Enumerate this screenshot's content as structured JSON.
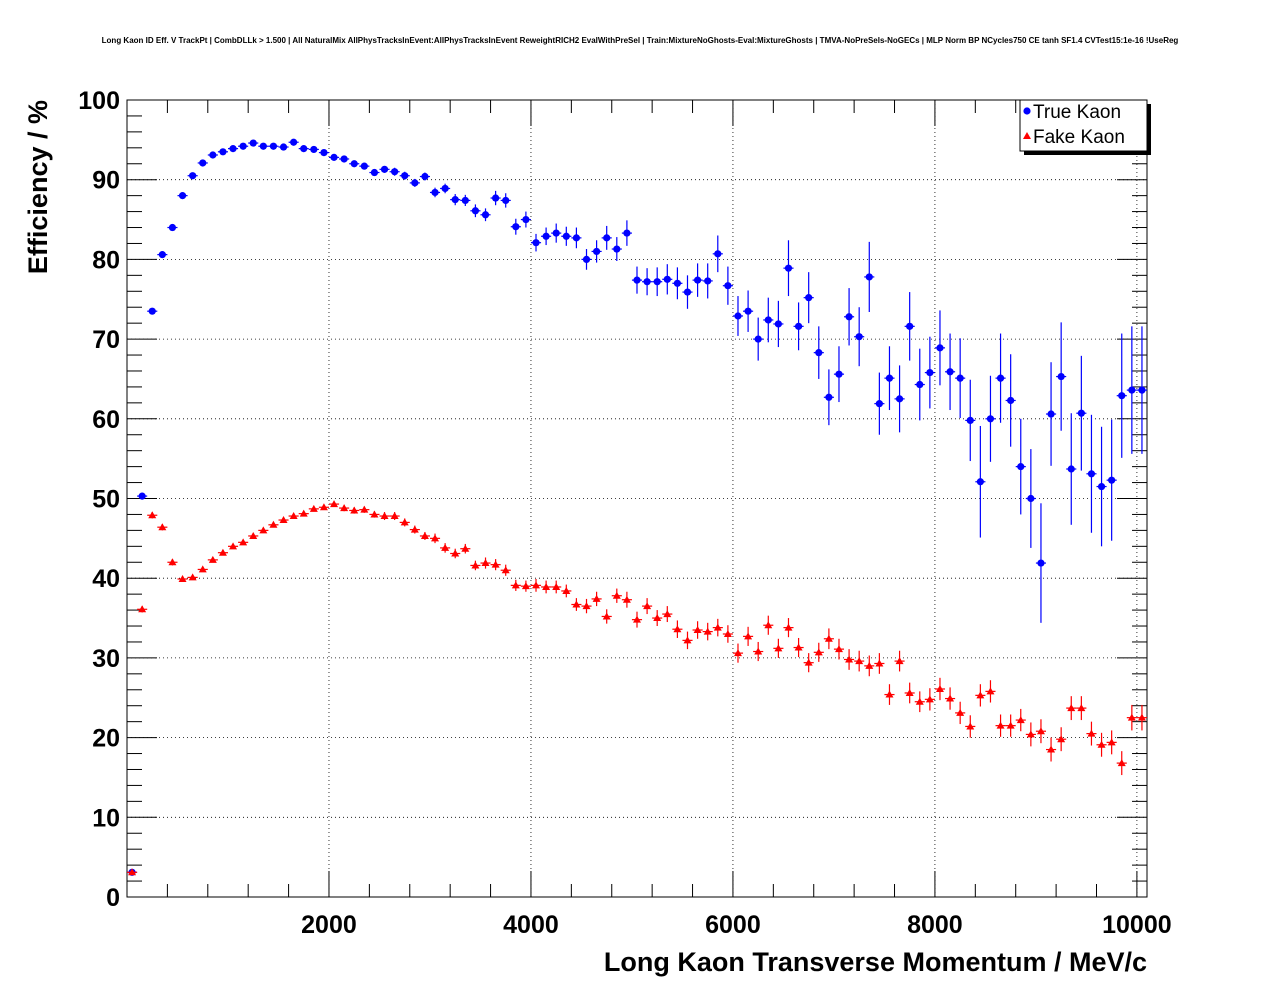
{
  "chart_data": {
    "type": "scatter",
    "title": "Long Kaon ID Eff. V TrackPt | CombDLLk > 1.500 | All NaturalMix AllPhysTracksInEvent:AllPhysTracksInEvent ReweightRICH2 EvalWithPreSel | Train:MixtureNoGhosts-Eval:MixtureGhosts | TMVA-NoPreSels-NoGECs | MLP Norm BP NCycles750 CE tanh SF1.4 CVTest15:1e-16 !UseReg",
    "xlabel": "Long Kaon Transverse Momentum / MeV/c",
    "ylabel": "Efficiency / %",
    "xlim": [
      0,
      10100
    ],
    "ylim": [
      0,
      100
    ],
    "x_ticks": [
      2000,
      4000,
      6000,
      8000,
      10000
    ],
    "y_ticks": [
      0,
      10,
      20,
      30,
      40,
      50,
      60,
      70,
      80,
      90,
      100
    ],
    "grid": true,
    "legend_position": "top-right",
    "series": [
      {
        "name": "True Kaon",
        "color": "#0000ff",
        "marker": "circle",
        "x": [
          50,
          150,
          250,
          350,
          450,
          550,
          650,
          750,
          850,
          950,
          1050,
          1150,
          1250,
          1350,
          1450,
          1550,
          1650,
          1750,
          1850,
          1950,
          2050,
          2150,
          2250,
          2350,
          2450,
          2550,
          2650,
          2750,
          2850,
          2950,
          3050,
          3150,
          3250,
          3350,
          3450,
          3550,
          3650,
          3750,
          3850,
          3950,
          4050,
          4150,
          4250,
          4350,
          4450,
          4550,
          4650,
          4750,
          4850,
          4950,
          5050,
          5150,
          5250,
          5350,
          5450,
          5550,
          5650,
          5750,
          5850,
          5950,
          6050,
          6150,
          6250,
          6350,
          6450,
          6550,
          6650,
          6750,
          6850,
          6950,
          7050,
          7150,
          7250,
          7350,
          7450,
          7550,
          7650,
          7750,
          7850,
          7950,
          8050,
          8150,
          8250,
          8350,
          8450,
          8550,
          8650,
          8750,
          8850,
          8950,
          9050,
          9150,
          9250,
          9350,
          9450,
          9550,
          9650,
          9750,
          9850,
          9950,
          10050
        ],
        "y": [
          3.1,
          50.3,
          73.5,
          80.6,
          84.0,
          88.0,
          90.5,
          92.1,
          93.1,
          93.5,
          93.9,
          94.2,
          94.6,
          94.2,
          94.2,
          94.1,
          94.7,
          93.9,
          93.8,
          93.4,
          92.8,
          92.6,
          92.0,
          91.7,
          90.9,
          91.3,
          91.0,
          90.5,
          89.6,
          90.4,
          88.4,
          88.9,
          87.5,
          87.4,
          86.1,
          85.6,
          87.7,
          87.4,
          84.1,
          85.0,
          82.1,
          82.9,
          83.3,
          82.9,
          82.7,
          80.0,
          81.0,
          82.7,
          81.3,
          83.3,
          77.4,
          77.2,
          77.2,
          77.5,
          77.0,
          75.9,
          77.4,
          77.3,
          80.7,
          76.7,
          72.9,
          73.5,
          70.0,
          72.4,
          71.9,
          78.9,
          71.6,
          75.2,
          68.3,
          62.7,
          65.6,
          72.8,
          70.3,
          77.8,
          61.9,
          65.1,
          62.5,
          71.6,
          64.3,
          65.8,
          68.9,
          65.9,
          65.1,
          59.8,
          52.1,
          60.0,
          65.1,
          62.3,
          54.0,
          50.0,
          41.9,
          60.6,
          65.3,
          53.7,
          60.7,
          53.1,
          51.5,
          52.3,
          62.9,
          63.6,
          63.6
        ],
        "err": [
          0.3,
          0.4,
          0.4,
          0.4,
          0.4,
          0.4,
          0.3,
          0.3,
          0.3,
          0.3,
          0.3,
          0.3,
          0.3,
          0.3,
          0.3,
          0.3,
          0.3,
          0.3,
          0.3,
          0.3,
          0.3,
          0.3,
          0.4,
          0.4,
          0.4,
          0.4,
          0.5,
          0.5,
          0.5,
          0.5,
          0.6,
          0.6,
          0.7,
          0.7,
          0.8,
          0.8,
          0.9,
          0.9,
          1.0,
          1.0,
          1.1,
          1.1,
          1.2,
          1.2,
          1.3,
          1.3,
          1.4,
          1.5,
          1.5,
          1.6,
          1.7,
          1.7,
          1.8,
          1.9,
          2.0,
          2.1,
          2.1,
          2.2,
          2.3,
          2.4,
          2.5,
          2.6,
          2.7,
          2.8,
          2.9,
          3.5,
          3.0,
          3.2,
          3.3,
          3.5,
          3.5,
          3.6,
          3.7,
          4.4,
          3.9,
          4.0,
          4.2,
          4.3,
          4.5,
          4.5,
          4.7,
          4.8,
          5.0,
          5.1,
          7.0,
          5.4,
          5.6,
          5.8,
          6.0,
          6.2,
          7.5,
          6.5,
          6.8,
          7.0,
          7.2,
          7.4,
          7.5,
          7.6,
          7.8,
          8.0,
          8.0
        ]
      },
      {
        "name": "Fake Kaon",
        "color": "#ff0000",
        "marker": "triangle",
        "x": [
          50,
          150,
          250,
          350,
          450,
          550,
          650,
          750,
          850,
          950,
          1050,
          1150,
          1250,
          1350,
          1450,
          1550,
          1650,
          1750,
          1850,
          1950,
          2050,
          2150,
          2250,
          2350,
          2450,
          2550,
          2650,
          2750,
          2850,
          2950,
          3050,
          3150,
          3250,
          3350,
          3450,
          3550,
          3650,
          3750,
          3850,
          3950,
          4050,
          4150,
          4250,
          4350,
          4450,
          4550,
          4650,
          4750,
          4850,
          4950,
          5050,
          5150,
          5250,
          5350,
          5450,
          5550,
          5650,
          5750,
          5850,
          5950,
          6050,
          6150,
          6250,
          6350,
          6450,
          6550,
          6650,
          6750,
          6850,
          6950,
          7050,
          7150,
          7250,
          7350,
          7450,
          7550,
          7650,
          7750,
          7850,
          7950,
          8050,
          8150,
          8250,
          8350,
          8450,
          8550,
          8650,
          8750,
          8850,
          8950,
          9050,
          9150,
          9250,
          9350,
          9450,
          9550,
          9650,
          9750,
          9850,
          9950,
          10050
        ],
        "y": [
          3.1,
          36.1,
          47.9,
          46.4,
          42.0,
          39.9,
          40.1,
          41.1,
          42.3,
          43.2,
          44.0,
          44.5,
          45.3,
          46.0,
          46.7,
          47.3,
          47.8,
          48.1,
          48.7,
          48.9,
          49.3,
          48.8,
          48.5,
          48.6,
          48.0,
          47.8,
          47.8,
          47.0,
          46.1,
          45.3,
          45.0,
          43.8,
          43.1,
          43.7,
          41.6,
          41.9,
          41.7,
          41.0,
          39.1,
          39.0,
          39.1,
          38.9,
          38.9,
          38.4,
          36.7,
          36.5,
          37.4,
          35.2,
          37.8,
          37.3,
          34.8,
          36.5,
          35.0,
          35.5,
          33.6,
          32.2,
          33.5,
          33.3,
          33.8,
          33.0,
          30.6,
          32.7,
          30.8,
          34.1,
          31.2,
          33.8,
          31.3,
          29.4,
          30.7,
          32.4,
          31.1,
          29.8,
          29.6,
          29.0,
          29.3,
          25.4,
          29.6,
          25.6,
          24.5,
          24.8,
          26.1,
          24.9,
          23.1,
          21.4,
          25.3,
          25.8,
          21.5,
          21.5,
          22.2,
          20.4,
          20.8,
          18.5,
          19.8,
          23.7,
          23.7,
          20.5,
          19.1,
          19.4,
          16.8,
          22.5,
          22.5
        ],
        "err": [
          0.3,
          0.4,
          0.4,
          0.4,
          0.4,
          0.3,
          0.3,
          0.3,
          0.3,
          0.3,
          0.3,
          0.3,
          0.3,
          0.3,
          0.3,
          0.3,
          0.3,
          0.3,
          0.3,
          0.3,
          0.3,
          0.4,
          0.4,
          0.4,
          0.4,
          0.5,
          0.5,
          0.5,
          0.5,
          0.5,
          0.6,
          0.6,
          0.6,
          0.6,
          0.6,
          0.7,
          0.7,
          0.7,
          0.7,
          0.7,
          0.8,
          0.8,
          0.8,
          0.8,
          0.8,
          0.9,
          0.9,
          0.9,
          0.9,
          1.0,
          1.0,
          1.0,
          1.0,
          1.0,
          1.1,
          1.1,
          1.1,
          1.1,
          1.1,
          1.1,
          1.2,
          1.2,
          1.2,
          1.2,
          1.2,
          1.2,
          1.2,
          1.2,
          1.2,
          1.3,
          1.3,
          1.3,
          1.3,
          1.3,
          1.3,
          1.3,
          1.3,
          1.3,
          1.3,
          1.4,
          1.4,
          1.4,
          1.4,
          1.4,
          1.4,
          1.4,
          1.4,
          1.4,
          1.4,
          1.5,
          1.5,
          1.5,
          1.5,
          1.5,
          1.5,
          1.5,
          1.5,
          1.5,
          1.5,
          1.6,
          1.6
        ]
      }
    ]
  }
}
